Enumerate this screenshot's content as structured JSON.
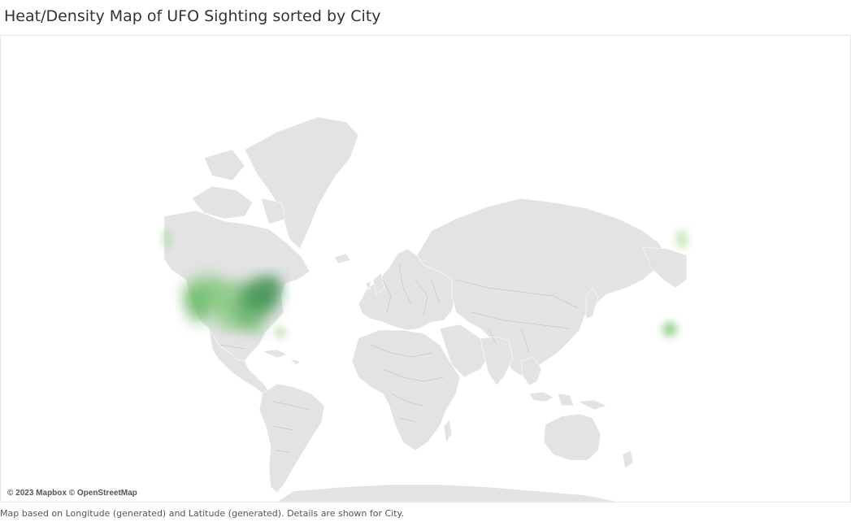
{
  "title": "Heat/Density Map of UFO Sighting sorted by City",
  "map": {
    "attribution": "© 2023 Mapbox © OpenStreetMap",
    "land_color": "#e3e3e3",
    "border_color": "#c6c6c6",
    "heat_colors": {
      "low": "#b3dfa6",
      "mid": "#7cc67a",
      "high": "#2e7d46"
    }
  },
  "footer": "Map based on Longitude (generated) and Latitude (generated).  Details are shown for City."
}
